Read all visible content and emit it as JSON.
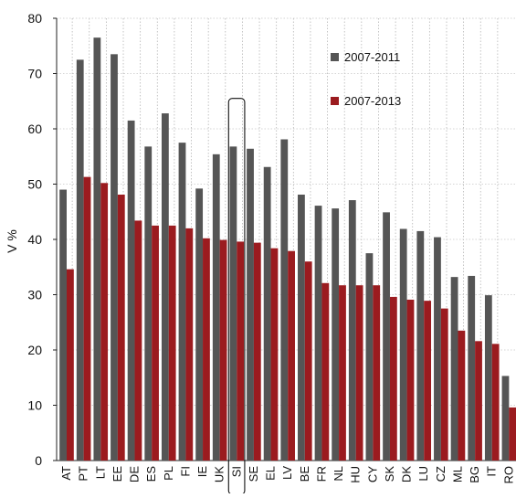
{
  "chart_data": {
    "type": "bar",
    "title": "",
    "xlabel": "",
    "ylabel": "V %",
    "ylim": [
      0,
      80
    ],
    "yticks": [
      0,
      10,
      20,
      30,
      40,
      50,
      60,
      70,
      80
    ],
    "categories": [
      "AT",
      "PT",
      "LT",
      "EE",
      "DE",
      "ES",
      "PL",
      "FI",
      "IE",
      "UK",
      "SI",
      "SE",
      "EL",
      "LV",
      "BE",
      "FR",
      "NL",
      "HU",
      "CY",
      "SK",
      "DK",
      "LU",
      "CZ",
      "ML",
      "BG",
      "IT",
      "RO"
    ],
    "highlight_category": "SI",
    "grid": "vertical dotted",
    "legend_placement": "top-right",
    "series": [
      {
        "name": "2007-2011",
        "color": "#555555",
        "values": [
          49,
          72.5,
          76.5,
          73.5,
          61.5,
          56.8,
          62.8,
          57.5,
          49.2,
          55.4,
          56.8,
          56.4,
          53.1,
          58.1,
          48.1,
          46.1,
          45.6,
          47.1,
          37.5,
          44.9,
          41.9,
          41.5,
          40.4,
          33.2,
          33.4,
          29.9,
          15.3
        ]
      },
      {
        "name": "2007-2013",
        "color": "#9b1b1f",
        "values": [
          34.6,
          51.3,
          50.2,
          48.1,
          43.4,
          42.5,
          42.5,
          42.0,
          40.2,
          39.9,
          39.6,
          39.4,
          38.4,
          37.9,
          36.0,
          32.1,
          31.7,
          31.7,
          31.7,
          29.6,
          29.1,
          28.9,
          27.5,
          23.5,
          21.6,
          21.1,
          9.6
        ]
      }
    ]
  }
}
